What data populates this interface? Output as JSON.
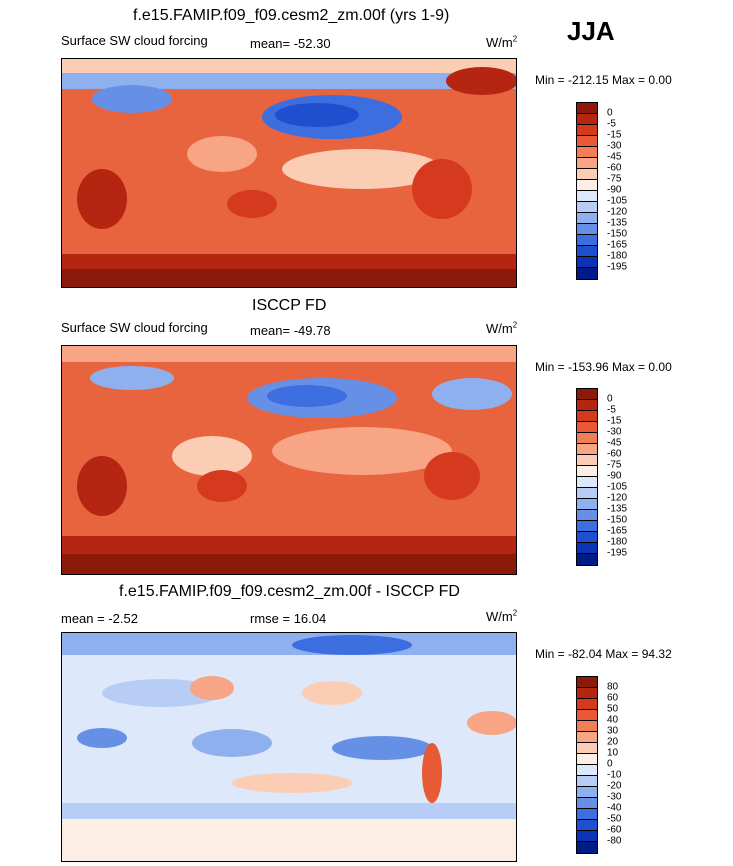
{
  "season": "JJA",
  "panels": [
    {
      "title": "f.e15.FAMIP.f09_f09.cesm2_zm.00f (yrs 1-9)",
      "left_label": "Surface SW cloud forcing",
      "center_label": "mean= -52.30",
      "units_base": "W/m",
      "units_exp": "2",
      "minmax": "Min = -212.15 Max =   0.00",
      "colorbar": {
        "labels": [
          "0",
          "-5",
          "-15",
          "-30",
          "-45",
          "-60",
          "-75",
          "-90",
          "-105",
          "-120",
          "-135",
          "-150",
          "-165",
          "-180",
          "-195"
        ],
        "colors": [
          "#8b1a0a",
          "#b52512",
          "#d63a1e",
          "#e85a35",
          "#f27e57",
          "#f7a584",
          "#fbcdb5",
          "#fdeee5",
          "#dde8fa",
          "#b8cdf5",
          "#8fb0ee",
          "#6690e6",
          "#3d6ee0",
          "#1f4fcf",
          "#0c33b5",
          "#001a86"
        ]
      }
    },
    {
      "title": "ISCCP FD",
      "left_label": "Surface SW cloud forcing",
      "center_label": "mean= -49.78",
      "units_base": "W/m",
      "units_exp": "2",
      "minmax": "Min = -153.96 Max =   0.00",
      "colorbar": {
        "labels": [
          "0",
          "-5",
          "-15",
          "-30",
          "-45",
          "-60",
          "-75",
          "-90",
          "-105",
          "-120",
          "-135",
          "-150",
          "-165",
          "-180",
          "-195"
        ],
        "colors": [
          "#8b1a0a",
          "#b52512",
          "#d63a1e",
          "#e85a35",
          "#f27e57",
          "#f7a584",
          "#fbcdb5",
          "#fdeee5",
          "#dde8fa",
          "#b8cdf5",
          "#8fb0ee",
          "#6690e6",
          "#3d6ee0",
          "#1f4fcf",
          "#0c33b5",
          "#001a86"
        ]
      }
    },
    {
      "title": "f.e15.FAMIP.f09_f09.cesm2_zm.00f - ISCCP FD",
      "left_label": "mean =  -2.52",
      "center_label": "rmse =  16.04",
      "units_base": "W/m",
      "units_exp": "2",
      "minmax": "Min = -82.04 Max =  94.32",
      "colorbar": {
        "labels": [
          "80",
          "60",
          "50",
          "40",
          "30",
          "20",
          "10",
          "0",
          "-10",
          "-20",
          "-30",
          "-40",
          "-50",
          "-60",
          "-80"
        ],
        "colors": [
          "#8b1a0a",
          "#b52512",
          "#d63a1e",
          "#e85a35",
          "#f27e57",
          "#f7a584",
          "#fbcdb5",
          "#fdeee5",
          "#dde8fa",
          "#b8cdf5",
          "#8fb0ee",
          "#6690e6",
          "#3d6ee0",
          "#1f4fcf",
          "#0c33b5",
          "#001a86"
        ]
      }
    }
  ]
}
